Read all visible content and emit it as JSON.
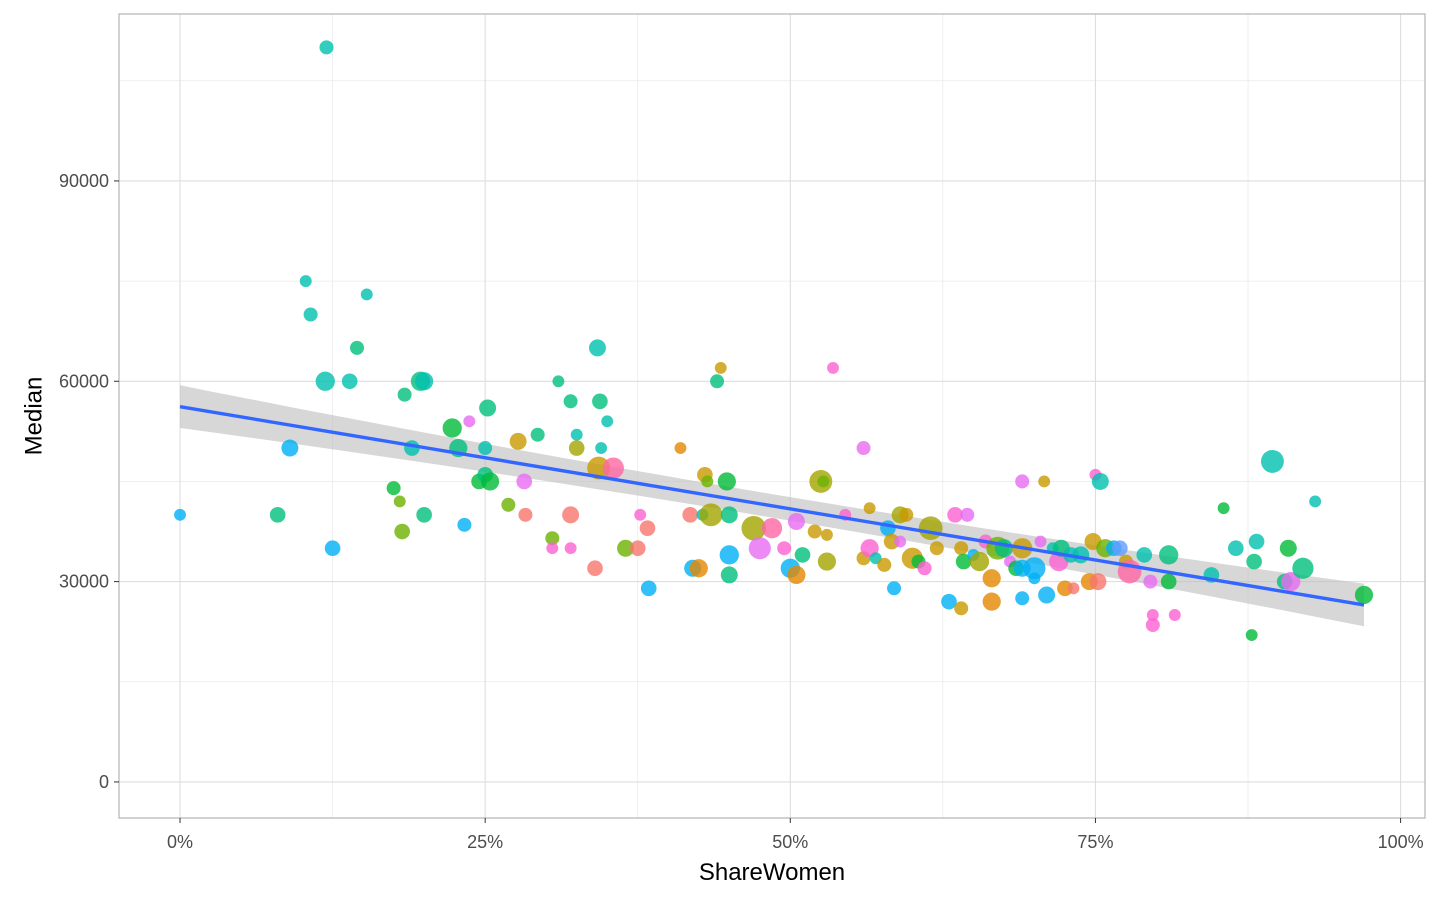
{
  "chart_data": {
    "type": "scatter",
    "title": "",
    "xlabel": "ShareWomen",
    "ylabel": "Median",
    "xlim": [
      -0.05,
      1.02
    ],
    "ylim": [
      -5400,
      115000
    ],
    "x_ticks": [
      0,
      0.25,
      0.5,
      0.75,
      1.0
    ],
    "x_tick_labels": [
      "0%",
      "25%",
      "50%",
      "75%",
      "100%"
    ],
    "y_ticks": [
      0,
      30000,
      60000,
      90000
    ],
    "y_tick_labels": [
      "0",
      "30000",
      "60000",
      "90000"
    ],
    "grid": true,
    "legend": "none",
    "regression": {
      "method": "lm",
      "x_range": [
        0,
        0.97
      ],
      "y_start": 56200,
      "y_end": 26500,
      "ci_halfwidth": 3200,
      "line_color": "#3366ff",
      "band_color": "#bdbdbd"
    },
    "point_opacity": 0.8,
    "palette": [
      "#f8766d",
      "#e58700",
      "#c99800",
      "#a3a500",
      "#6bb100",
      "#00ba38",
      "#00bf7d",
      "#00c0af",
      "#00bcd8",
      "#00b0f6",
      "#619cff",
      "#b983ff",
      "#e76bf3",
      "#fd61d1",
      "#ff67a4"
    ],
    "points": [
      {
        "x": 0.0,
        "y": 40000,
        "size": 1,
        "color": "#00b0f6"
      },
      {
        "x": 0.08,
        "y": 40000,
        "size": 3,
        "color": "#00bf7d"
      },
      {
        "x": 0.09,
        "y": 50000,
        "size": 4,
        "color": "#00b0f6"
      },
      {
        "x": 0.103,
        "y": 75000,
        "size": 1,
        "color": "#00c0af"
      },
      {
        "x": 0.107,
        "y": 70000,
        "size": 2,
        "color": "#00c0af"
      },
      {
        "x": 0.119,
        "y": 60000,
        "size": 6,
        "color": "#00c0af"
      },
      {
        "x": 0.12,
        "y": 110000,
        "size": 2,
        "color": "#00c0af"
      },
      {
        "x": 0.125,
        "y": 35000,
        "size": 3,
        "color": "#00b0f6"
      },
      {
        "x": 0.139,
        "y": 60000,
        "size": 3,
        "color": "#00c0af"
      },
      {
        "x": 0.145,
        "y": 65000,
        "size": 2,
        "color": "#00bf7d"
      },
      {
        "x": 0.153,
        "y": 73000,
        "size": 1,
        "color": "#00c0af"
      },
      {
        "x": 0.175,
        "y": 44000,
        "size": 2,
        "color": "#00ba38"
      },
      {
        "x": 0.18,
        "y": 42000,
        "size": 1,
        "color": "#6bb100"
      },
      {
        "x": 0.182,
        "y": 37500,
        "size": 3,
        "color": "#6bb100"
      },
      {
        "x": 0.184,
        "y": 58000,
        "size": 2,
        "color": "#00bf7d"
      },
      {
        "x": 0.19,
        "y": 50000,
        "size": 3,
        "color": "#00c0af"
      },
      {
        "x": 0.197,
        "y": 60000,
        "size": 6,
        "color": "#00bf7d"
      },
      {
        "x": 0.2,
        "y": 60000,
        "size": 5,
        "color": "#00c0af"
      },
      {
        "x": 0.2,
        "y": 40000,
        "size": 3,
        "color": "#00bf7d"
      },
      {
        "x": 0.223,
        "y": 53000,
        "size": 6,
        "color": "#00ba38"
      },
      {
        "x": 0.228,
        "y": 50000,
        "size": 5,
        "color": "#00bf7d"
      },
      {
        "x": 0.233,
        "y": 38500,
        "size": 2,
        "color": "#00b0f6"
      },
      {
        "x": 0.237,
        "y": 54000,
        "size": 1,
        "color": "#e76bf3"
      },
      {
        "x": 0.245,
        "y": 45000,
        "size": 3,
        "color": "#00ba38"
      },
      {
        "x": 0.25,
        "y": 46000,
        "size": 3,
        "color": "#00bf7d"
      },
      {
        "x": 0.25,
        "y": 50000,
        "size": 2,
        "color": "#00c0af"
      },
      {
        "x": 0.252,
        "y": 56000,
        "size": 4,
        "color": "#00bf7d"
      },
      {
        "x": 0.254,
        "y": 45000,
        "size": 5,
        "color": "#00ba38"
      },
      {
        "x": 0.269,
        "y": 41500,
        "size": 2,
        "color": "#6bb100"
      },
      {
        "x": 0.277,
        "y": 51000,
        "size": 4,
        "color": "#c99800"
      },
      {
        "x": 0.282,
        "y": 45000,
        "size": 3,
        "color": "#e76bf3"
      },
      {
        "x": 0.283,
        "y": 40000,
        "size": 2,
        "color": "#f8766d"
      },
      {
        "x": 0.293,
        "y": 52000,
        "size": 2,
        "color": "#00bf7d"
      },
      {
        "x": 0.305,
        "y": 36500,
        "size": 2,
        "color": "#6bb100"
      },
      {
        "x": 0.305,
        "y": 35000,
        "size": 1,
        "color": "#fd61d1"
      },
      {
        "x": 0.31,
        "y": 60000,
        "size": 1,
        "color": "#00bf7d"
      },
      {
        "x": 0.32,
        "y": 57000,
        "size": 2,
        "color": "#00bf7d"
      },
      {
        "x": 0.32,
        "y": 40000,
        "size": 4,
        "color": "#f8766d"
      },
      {
        "x": 0.32,
        "y": 35000,
        "size": 1,
        "color": "#fd61d1"
      },
      {
        "x": 0.325,
        "y": 52000,
        "size": 1,
        "color": "#00c0af"
      },
      {
        "x": 0.325,
        "y": 50000,
        "size": 3,
        "color": "#a3a500"
      },
      {
        "x": 0.34,
        "y": 32000,
        "size": 3,
        "color": "#f8766d"
      },
      {
        "x": 0.343,
        "y": 47000,
        "size": 10,
        "color": "#c99800"
      },
      {
        "x": 0.342,
        "y": 65000,
        "size": 4,
        "color": "#00c0af"
      },
      {
        "x": 0.344,
        "y": 57000,
        "size": 3,
        "color": "#00bf7d"
      },
      {
        "x": 0.345,
        "y": 50000,
        "size": 1,
        "color": "#00c0af"
      },
      {
        "x": 0.35,
        "y": 54000,
        "size": 1,
        "color": "#00c0af"
      },
      {
        "x": 0.355,
        "y": 47000,
        "size": 8,
        "color": "#ff67a4"
      },
      {
        "x": 0.365,
        "y": 35000,
        "size": 4,
        "color": "#6bb100"
      },
      {
        "x": 0.375,
        "y": 35000,
        "size": 3,
        "color": "#f8766d"
      },
      {
        "x": 0.377,
        "y": 40000,
        "size": 1,
        "color": "#fd61d1"
      },
      {
        "x": 0.383,
        "y": 38000,
        "size": 3,
        "color": "#f8766d"
      },
      {
        "x": 0.384,
        "y": 29000,
        "size": 3,
        "color": "#00b0f6"
      },
      {
        "x": 0.41,
        "y": 50000,
        "size": 1,
        "color": "#e58700"
      },
      {
        "x": 0.418,
        "y": 40000,
        "size": 3,
        "color": "#f8766d"
      },
      {
        "x": 0.42,
        "y": 32000,
        "size": 4,
        "color": "#00b0f6"
      },
      {
        "x": 0.425,
        "y": 32000,
        "size": 5,
        "color": "#e58700"
      },
      {
        "x": 0.428,
        "y": 40000,
        "size": 1,
        "color": "#00c0af"
      },
      {
        "x": 0.43,
        "y": 46000,
        "size": 3,
        "color": "#c99800"
      },
      {
        "x": 0.432,
        "y": 45000,
        "size": 1,
        "color": "#6bb100"
      },
      {
        "x": 0.435,
        "y": 40000,
        "size": 10,
        "color": "#a3a500"
      },
      {
        "x": 0.44,
        "y": 60000,
        "size": 2,
        "color": "#00bf7d"
      },
      {
        "x": 0.443,
        "y": 62000,
        "size": 1,
        "color": "#c99800"
      },
      {
        "x": 0.448,
        "y": 45000,
        "size": 5,
        "color": "#00ba38"
      },
      {
        "x": 0.45,
        "y": 40000,
        "size": 4,
        "color": "#00bf7d"
      },
      {
        "x": 0.45,
        "y": 34000,
        "size": 6,
        "color": "#00b0f6"
      },
      {
        "x": 0.45,
        "y": 31000,
        "size": 4,
        "color": "#00bf7d"
      },
      {
        "x": 0.47,
        "y": 38000,
        "size": 12,
        "color": "#a3a500"
      },
      {
        "x": 0.475,
        "y": 35000,
        "size": 9,
        "color": "#e76bf3"
      },
      {
        "x": 0.485,
        "y": 38000,
        "size": 7,
        "color": "#ff67a4"
      },
      {
        "x": 0.495,
        "y": 35000,
        "size": 2,
        "color": "#fd61d1"
      },
      {
        "x": 0.5,
        "y": 32000,
        "size": 6,
        "color": "#00b0f6"
      },
      {
        "x": 0.505,
        "y": 39000,
        "size": 4,
        "color": "#e76bf3"
      },
      {
        "x": 0.505,
        "y": 31000,
        "size": 5,
        "color": "#e58700"
      },
      {
        "x": 0.51,
        "y": 34000,
        "size": 3,
        "color": "#00bf7d"
      },
      {
        "x": 0.52,
        "y": 37500,
        "size": 2,
        "color": "#c99800"
      },
      {
        "x": 0.525,
        "y": 45000,
        "size": 10,
        "color": "#a3a500"
      },
      {
        "x": 0.527,
        "y": 45000,
        "size": 1,
        "color": "#6bb100"
      },
      {
        "x": 0.53,
        "y": 37000,
        "size": 1,
        "color": "#c99800"
      },
      {
        "x": 0.53,
        "y": 33000,
        "size": 5,
        "color": "#a3a500"
      },
      {
        "x": 0.535,
        "y": 62000,
        "size": 1,
        "color": "#fd61d1"
      },
      {
        "x": 0.545,
        "y": 40000,
        "size": 1,
        "color": "#fd61d1"
      },
      {
        "x": 0.56,
        "y": 50000,
        "size": 2,
        "color": "#e76bf3"
      },
      {
        "x": 0.56,
        "y": 33500,
        "size": 2,
        "color": "#c99800"
      },
      {
        "x": 0.565,
        "y": 41000,
        "size": 1,
        "color": "#c99800"
      },
      {
        "x": 0.565,
        "y": 35000,
        "size": 5,
        "color": "#fd61d1"
      },
      {
        "x": 0.57,
        "y": 33500,
        "size": 1,
        "color": "#00c0af"
      },
      {
        "x": 0.577,
        "y": 32500,
        "size": 2,
        "color": "#c99800"
      },
      {
        "x": 0.58,
        "y": 38000,
        "size": 3,
        "color": "#00b0f6"
      },
      {
        "x": 0.583,
        "y": 36000,
        "size": 3,
        "color": "#c99800"
      },
      {
        "x": 0.585,
        "y": 29000,
        "size": 2,
        "color": "#00b0f6"
      },
      {
        "x": 0.59,
        "y": 40000,
        "size": 4,
        "color": "#a3a500"
      },
      {
        "x": 0.59,
        "y": 36000,
        "size": 1,
        "color": "#e76bf3"
      },
      {
        "x": 0.595,
        "y": 40000,
        "size": 2,
        "color": "#c99800"
      },
      {
        "x": 0.6,
        "y": 33500,
        "size": 8,
        "color": "#c99800"
      },
      {
        "x": 0.605,
        "y": 33000,
        "size": 2,
        "color": "#00ba38"
      },
      {
        "x": 0.61,
        "y": 32000,
        "size": 2,
        "color": "#fd61d1"
      },
      {
        "x": 0.615,
        "y": 38000,
        "size": 11,
        "color": "#a3a500"
      },
      {
        "x": 0.62,
        "y": 35000,
        "size": 2,
        "color": "#c99800"
      },
      {
        "x": 0.63,
        "y": 27000,
        "size": 3,
        "color": "#00b0f6"
      },
      {
        "x": 0.635,
        "y": 40000,
        "size": 3,
        "color": "#fd61d1"
      },
      {
        "x": 0.64,
        "y": 26000,
        "size": 2,
        "color": "#c99800"
      },
      {
        "x": 0.64,
        "y": 35000,
        "size": 2,
        "color": "#c99800"
      },
      {
        "x": 0.642,
        "y": 33000,
        "size": 3,
        "color": "#00ba38"
      },
      {
        "x": 0.645,
        "y": 40000,
        "size": 2,
        "color": "#e76bf3"
      },
      {
        "x": 0.65,
        "y": 34000,
        "size": 1,
        "color": "#00b0f6"
      },
      {
        "x": 0.655,
        "y": 33000,
        "size": 6,
        "color": "#a3a500"
      },
      {
        "x": 0.66,
        "y": 36000,
        "size": 2,
        "color": "#fd61d1"
      },
      {
        "x": 0.665,
        "y": 30500,
        "size": 5,
        "color": "#e58700"
      },
      {
        "x": 0.665,
        "y": 27000,
        "size": 5,
        "color": "#e58700"
      },
      {
        "x": 0.67,
        "y": 35000,
        "size": 10,
        "color": "#6bb100"
      },
      {
        "x": 0.675,
        "y": 35000,
        "size": 5,
        "color": "#00bf7d"
      },
      {
        "x": 0.68,
        "y": 33000,
        "size": 1,
        "color": "#e76bf3"
      },
      {
        "x": 0.685,
        "y": 32000,
        "size": 3,
        "color": "#00ba38"
      },
      {
        "x": 0.69,
        "y": 45000,
        "size": 2,
        "color": "#e76bf3"
      },
      {
        "x": 0.69,
        "y": 35000,
        "size": 7,
        "color": "#c99800"
      },
      {
        "x": 0.69,
        "y": 32000,
        "size": 4,
        "color": "#00b0f6"
      },
      {
        "x": 0.69,
        "y": 27500,
        "size": 2,
        "color": "#00b0f6"
      },
      {
        "x": 0.7,
        "y": 30500,
        "size": 1,
        "color": "#00b0f6"
      },
      {
        "x": 0.7,
        "y": 32000,
        "size": 9,
        "color": "#00b0f6"
      },
      {
        "x": 0.705,
        "y": 36000,
        "size": 1,
        "color": "#e76bf3"
      },
      {
        "x": 0.708,
        "y": 45000,
        "size": 1,
        "color": "#c99800"
      },
      {
        "x": 0.71,
        "y": 28000,
        "size": 4,
        "color": "#00b0f6"
      },
      {
        "x": 0.715,
        "y": 35000,
        "size": 1,
        "color": "#00c0af"
      },
      {
        "x": 0.72,
        "y": 33000,
        "size": 6,
        "color": "#fd61d1"
      },
      {
        "x": 0.722,
        "y": 35000,
        "size": 4,
        "color": "#00bf7d"
      },
      {
        "x": 0.725,
        "y": 29000,
        "size": 3,
        "color": "#e58700"
      },
      {
        "x": 0.73,
        "y": 34000,
        "size": 3,
        "color": "#00c0af"
      },
      {
        "x": 0.732,
        "y": 29000,
        "size": 1,
        "color": "#f8766d"
      },
      {
        "x": 0.738,
        "y": 34000,
        "size": 4,
        "color": "#00c0af"
      },
      {
        "x": 0.745,
        "y": 30000,
        "size": 4,
        "color": "#e58700"
      },
      {
        "x": 0.748,
        "y": 36000,
        "size": 4,
        "color": "#c99800"
      },
      {
        "x": 0.75,
        "y": 46000,
        "size": 1,
        "color": "#fd61d1"
      },
      {
        "x": 0.752,
        "y": 30000,
        "size": 4,
        "color": "#f8766d"
      },
      {
        "x": 0.754,
        "y": 45000,
        "size": 4,
        "color": "#00c0af"
      },
      {
        "x": 0.758,
        "y": 35000,
        "size": 5,
        "color": "#6bb100"
      },
      {
        "x": 0.765,
        "y": 35000,
        "size": 3,
        "color": "#00b0f6"
      },
      {
        "x": 0.77,
        "y": 35000,
        "size": 3,
        "color": "#619cff"
      },
      {
        "x": 0.775,
        "y": 33000,
        "size": 2,
        "color": "#c99800"
      },
      {
        "x": 0.778,
        "y": 31500,
        "size": 11,
        "color": "#ff67a4"
      },
      {
        "x": 0.79,
        "y": 34000,
        "size": 3,
        "color": "#00c0af"
      },
      {
        "x": 0.795,
        "y": 30000,
        "size": 2,
        "color": "#e76bf3"
      },
      {
        "x": 0.797,
        "y": 25000,
        "size": 1,
        "color": "#fd61d1"
      },
      {
        "x": 0.797,
        "y": 23500,
        "size": 2,
        "color": "#fd61d1"
      },
      {
        "x": 0.81,
        "y": 30000,
        "size": 3,
        "color": "#00ba38"
      },
      {
        "x": 0.81,
        "y": 34000,
        "size": 6,
        "color": "#00bf7d"
      },
      {
        "x": 0.815,
        "y": 25000,
        "size": 1,
        "color": "#fd61d1"
      },
      {
        "x": 0.845,
        "y": 31000,
        "size": 3,
        "color": "#00c0af"
      },
      {
        "x": 0.855,
        "y": 41000,
        "size": 1,
        "color": "#00ba38"
      },
      {
        "x": 0.865,
        "y": 35000,
        "size": 3,
        "color": "#00c0af"
      },
      {
        "x": 0.878,
        "y": 22000,
        "size": 1,
        "color": "#00ba38"
      },
      {
        "x": 0.88,
        "y": 33000,
        "size": 3,
        "color": "#00bf7d"
      },
      {
        "x": 0.882,
        "y": 36000,
        "size": 3,
        "color": "#00c0af"
      },
      {
        "x": 0.895,
        "y": 48000,
        "size": 10,
        "color": "#00c0af"
      },
      {
        "x": 0.905,
        "y": 30000,
        "size": 3,
        "color": "#00bf7d"
      },
      {
        "x": 0.908,
        "y": 35000,
        "size": 4,
        "color": "#00ba38"
      },
      {
        "x": 0.91,
        "y": 30000,
        "size": 6,
        "color": "#e76bf3"
      },
      {
        "x": 0.92,
        "y": 32000,
        "size": 8,
        "color": "#00bf7d"
      },
      {
        "x": 0.93,
        "y": 42000,
        "size": 1,
        "color": "#00c0af"
      },
      {
        "x": 0.97,
        "y": 28000,
        "size": 5,
        "color": "#00ba38"
      }
    ]
  }
}
